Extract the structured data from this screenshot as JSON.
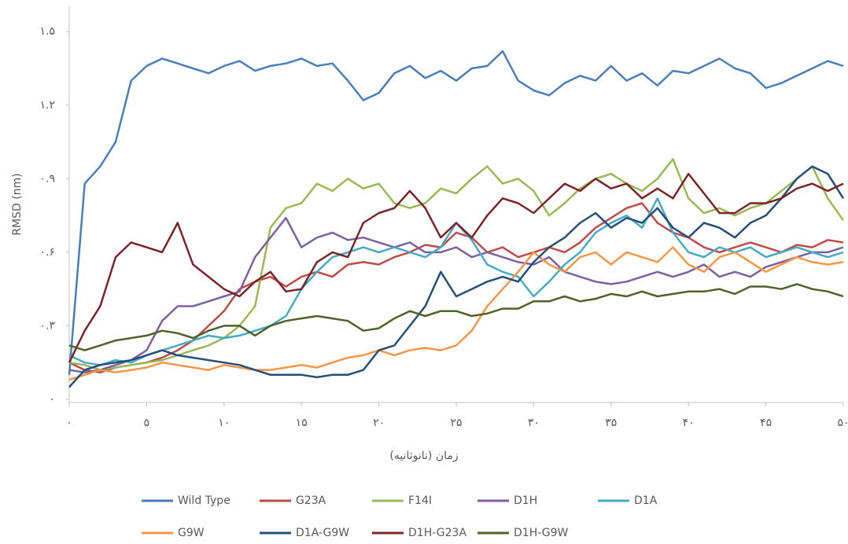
{
  "chart_data": {
    "type": "line",
    "x_label": "زمان (نانوثانیه)",
    "y_label": "RMSD (nm)",
    "x": [
      0,
      1,
      2,
      3,
      4,
      5,
      6,
      7,
      8,
      9,
      10,
      11,
      12,
      13,
      14,
      15,
      16,
      17,
      18,
      19,
      20,
      21,
      22,
      23,
      24,
      25,
      26,
      27,
      28,
      29,
      30,
      31,
      32,
      33,
      34,
      35,
      36,
      37,
      38,
      39,
      40,
      41,
      42,
      43,
      44,
      45,
      46,
      47,
      48,
      49,
      50
    ],
    "xlim": [
      0,
      50
    ],
    "xticks": [
      {
        "value": 0,
        "label": "۰"
      },
      {
        "value": 5,
        "label": "۵"
      },
      {
        "value": 10,
        "label": "۱۰"
      },
      {
        "value": 15,
        "label": "۱۵"
      },
      {
        "value": 20,
        "label": "۲۰"
      },
      {
        "value": 25,
        "label": "۲۵"
      },
      {
        "value": 30,
        "label": "۳۰"
      },
      {
        "value": 35,
        "label": "۳۵"
      },
      {
        "value": 40,
        "label": "۴۰"
      },
      {
        "value": 45,
        "label": "۴۵"
      },
      {
        "value": 50,
        "label": "۵۰"
      }
    ],
    "ylim": [
      0,
      1.6
    ],
    "yticks": [
      {
        "value": 0,
        "label": "۰"
      },
      {
        "value": 0.3,
        "label": "۰.۳"
      },
      {
        "value": 0.6,
        "label": "۰.۶"
      },
      {
        "value": 0.9,
        "label": "۰.۹"
      },
      {
        "value": 1.2,
        "label": "۱.۲"
      },
      {
        "value": 1.5,
        "label": "۱.۵"
      }
    ],
    "legend": "bottom",
    "series": [
      {
        "name": "Wild Type",
        "color": "#4a7ebb",
        "values": [
          0.1,
          0.88,
          0.95,
          1.05,
          1.3,
          1.36,
          1.39,
          1.37,
          1.35,
          1.33,
          1.36,
          1.38,
          1.34,
          1.36,
          1.37,
          1.39,
          1.36,
          1.37,
          1.3,
          1.22,
          1.25,
          1.33,
          1.36,
          1.31,
          1.34,
          1.3,
          1.35,
          1.36,
          1.42,
          1.3,
          1.26,
          1.24,
          1.29,
          1.32,
          1.3,
          1.36,
          1.3,
          1.33,
          1.28,
          1.34,
          1.33,
          1.36,
          1.39,
          1.35,
          1.33,
          1.27,
          1.29,
          1.32,
          1.35,
          1.38,
          1.36
        ]
      },
      {
        "name": "G23A",
        "color": "#be4b48",
        "values": [
          0.15,
          0.12,
          0.11,
          0.13,
          0.14,
          0.15,
          0.17,
          0.2,
          0.24,
          0.3,
          0.36,
          0.45,
          0.48,
          0.5,
          0.46,
          0.5,
          0.52,
          0.5,
          0.55,
          0.56,
          0.55,
          0.58,
          0.6,
          0.63,
          0.62,
          0.68,
          0.66,
          0.6,
          0.62,
          0.58,
          0.6,
          0.62,
          0.6,
          0.64,
          0.7,
          0.74,
          0.78,
          0.8,
          0.72,
          0.68,
          0.66,
          0.62,
          0.6,
          0.62,
          0.64,
          0.62,
          0.6,
          0.63,
          0.62,
          0.65,
          0.64
        ]
      },
      {
        "name": "F14I",
        "color": "#98b954",
        "values": [
          0.15,
          0.14,
          0.12,
          0.13,
          0.14,
          0.15,
          0.16,
          0.18,
          0.2,
          0.22,
          0.25,
          0.3,
          0.38,
          0.7,
          0.78,
          0.8,
          0.88,
          0.85,
          0.9,
          0.86,
          0.88,
          0.8,
          0.78,
          0.8,
          0.86,
          0.84,
          0.9,
          0.95,
          0.88,
          0.9,
          0.85,
          0.75,
          0.8,
          0.86,
          0.9,
          0.92,
          0.88,
          0.85,
          0.9,
          0.98,
          0.82,
          0.76,
          0.78,
          0.75,
          0.78,
          0.8,
          0.85,
          0.9,
          0.95,
          0.82,
          0.73
        ]
      },
      {
        "name": "D1H",
        "color": "#7d60a0",
        "values": [
          0.12,
          0.11,
          0.12,
          0.14,
          0.16,
          0.2,
          0.32,
          0.38,
          0.38,
          0.4,
          0.42,
          0.44,
          0.58,
          0.66,
          0.74,
          0.62,
          0.66,
          0.68,
          0.65,
          0.66,
          0.64,
          0.62,
          0.64,
          0.6,
          0.6,
          0.62,
          0.58,
          0.6,
          0.58,
          0.56,
          0.55,
          0.58,
          0.52,
          0.5,
          0.48,
          0.47,
          0.48,
          0.5,
          0.52,
          0.5,
          0.52,
          0.55,
          0.5,
          0.52,
          0.5,
          0.54,
          0.56,
          0.58,
          0.6,
          0.6,
          0.62
        ]
      },
      {
        "name": "D1A",
        "color": "#46aac5",
        "values": [
          0.18,
          0.15,
          0.14,
          0.16,
          0.15,
          0.18,
          0.2,
          0.22,
          0.24,
          0.26,
          0.25,
          0.26,
          0.28,
          0.3,
          0.34,
          0.45,
          0.52,
          0.58,
          0.6,
          0.62,
          0.6,
          0.62,
          0.6,
          0.58,
          0.62,
          0.72,
          0.65,
          0.55,
          0.52,
          0.5,
          0.42,
          0.48,
          0.55,
          0.6,
          0.68,
          0.72,
          0.75,
          0.7,
          0.82,
          0.68,
          0.6,
          0.58,
          0.62,
          0.6,
          0.62,
          0.58,
          0.6,
          0.62,
          0.6,
          0.58,
          0.6
        ]
      },
      {
        "name": "G9W",
        "color": "#f79646",
        "values": [
          0.08,
          0.1,
          0.12,
          0.11,
          0.12,
          0.13,
          0.15,
          0.14,
          0.13,
          0.12,
          0.14,
          0.13,
          0.12,
          0.12,
          0.13,
          0.14,
          0.13,
          0.15,
          0.17,
          0.18,
          0.2,
          0.18,
          0.2,
          0.21,
          0.2,
          0.22,
          0.28,
          0.38,
          0.45,
          0.52,
          0.6,
          0.55,
          0.52,
          0.58,
          0.6,
          0.55,
          0.6,
          0.58,
          0.56,
          0.62,
          0.55,
          0.52,
          0.58,
          0.6,
          0.56,
          0.52,
          0.55,
          0.58,
          0.56,
          0.55,
          0.56
        ]
      },
      {
        "name": "D1A-G9W",
        "color": "#254e7a",
        "values": [
          0.05,
          0.12,
          0.14,
          0.15,
          0.16,
          0.18,
          0.2,
          0.18,
          0.17,
          0.16,
          0.15,
          0.14,
          0.12,
          0.1,
          0.1,
          0.1,
          0.09,
          0.1,
          0.1,
          0.12,
          0.2,
          0.22,
          0.3,
          0.38,
          0.52,
          0.42,
          0.45,
          0.48,
          0.5,
          0.48,
          0.56,
          0.62,
          0.66,
          0.72,
          0.76,
          0.7,
          0.74,
          0.72,
          0.78,
          0.7,
          0.66,
          0.72,
          0.7,
          0.66,
          0.72,
          0.75,
          0.82,
          0.9,
          0.95,
          0.92,
          0.82
        ]
      },
      {
        "name": "D1H-G23A",
        "color": "#7b2427",
        "values": [
          0.15,
          0.28,
          0.38,
          0.58,
          0.64,
          0.62,
          0.6,
          0.72,
          0.55,
          0.5,
          0.45,
          0.42,
          0.48,
          0.52,
          0.44,
          0.45,
          0.56,
          0.6,
          0.58,
          0.72,
          0.76,
          0.78,
          0.85,
          0.78,
          0.66,
          0.72,
          0.66,
          0.75,
          0.82,
          0.8,
          0.76,
          0.82,
          0.88,
          0.85,
          0.9,
          0.86,
          0.88,
          0.82,
          0.86,
          0.82,
          0.92,
          0.84,
          0.76,
          0.76,
          0.8,
          0.8,
          0.82,
          0.86,
          0.88,
          0.85,
          0.88
        ]
      },
      {
        "name": "D1H-G9W",
        "color": "#4f6228",
        "values": [
          0.22,
          0.2,
          0.22,
          0.24,
          0.25,
          0.26,
          0.28,
          0.27,
          0.25,
          0.28,
          0.3,
          0.3,
          0.26,
          0.3,
          0.32,
          0.33,
          0.34,
          0.33,
          0.32,
          0.28,
          0.29,
          0.33,
          0.36,
          0.34,
          0.36,
          0.36,
          0.34,
          0.35,
          0.37,
          0.37,
          0.4,
          0.4,
          0.42,
          0.4,
          0.41,
          0.43,
          0.42,
          0.44,
          0.42,
          0.43,
          0.44,
          0.44,
          0.45,
          0.43,
          0.46,
          0.46,
          0.45,
          0.47,
          0.45,
          0.44,
          0.42
        ]
      }
    ]
  }
}
